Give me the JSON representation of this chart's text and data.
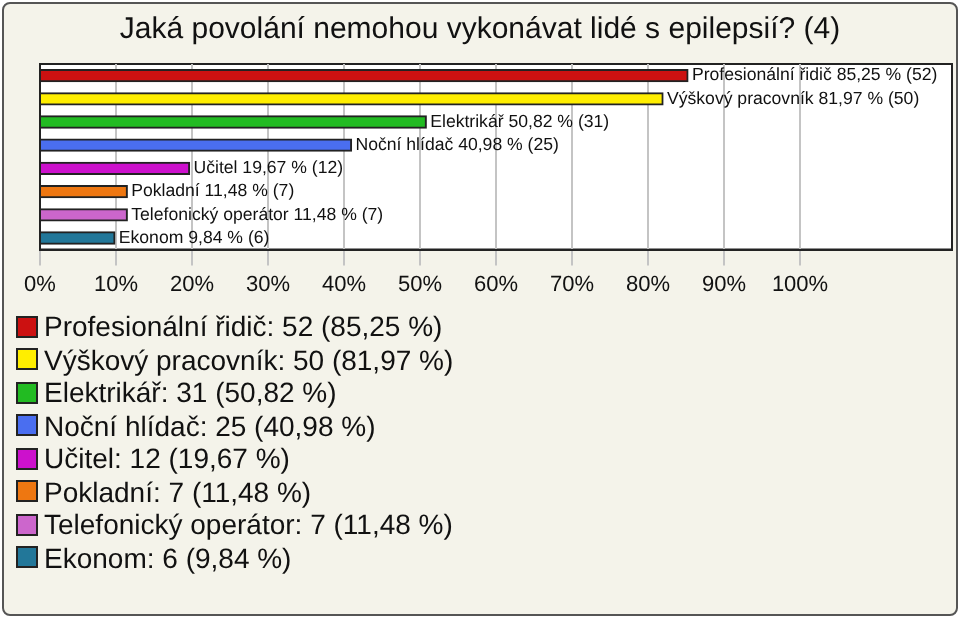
{
  "chart_data": {
    "type": "bar",
    "orientation": "horizontal",
    "title": "Jaká povolání nemohou vykonávat lidé s epilepsií? (4)",
    "categories": [
      null,
      null,
      null,
      null,
      null,
      null,
      null,
      null
    ],
    "series": [
      {
        "name": "Profesionální řidič: 52 (85,25 %)",
        "color": "#cc1111",
        "values": [
          85.25,
          null,
          null,
          null,
          null,
          null,
          null,
          null
        ],
        "value_labels": [
          "Profesionální řidič 85,25 % (52)",
          null,
          null,
          null,
          null,
          null,
          null,
          null
        ]
      },
      {
        "name": "Výškový pracovník: 50 (81,97 %)",
        "color": "#ffee00",
        "values": [
          null,
          81.97,
          null,
          null,
          null,
          null,
          null,
          null
        ],
        "value_labels": [
          null,
          "Výškový pracovník 81,97 % (50)",
          null,
          null,
          null,
          null,
          null,
          null
        ]
      },
      {
        "name": "Elektrikář: 31 (50,82 %)",
        "color": "#22bb22",
        "values": [
          null,
          null,
          50.82,
          null,
          null,
          null,
          null,
          null
        ],
        "value_labels": [
          null,
          null,
          "Elektrikář 50,82 % (31)",
          null,
          null,
          null,
          null,
          null
        ]
      },
      {
        "name": "Noční hlídač: 25 (40,98 %)",
        "color": "#4a6ef0",
        "values": [
          null,
          null,
          null,
          40.98,
          null,
          null,
          null,
          null
        ],
        "value_labels": [
          null,
          null,
          null,
          "Noční hlídač 40,98 % (25)",
          null,
          null,
          null,
          null
        ]
      },
      {
        "name": "Učitel: 12 (19,67 %)",
        "color": "#cc11cc",
        "values": [
          null,
          null,
          null,
          null,
          19.67,
          null,
          null,
          null
        ],
        "value_labels": [
          null,
          null,
          null,
          null,
          "Učitel 19,67 % (12)",
          null,
          null,
          null
        ]
      },
      {
        "name": "Pokladní: 7 (11,48 %)",
        "color": "#ee7711",
        "values": [
          null,
          null,
          null,
          null,
          null,
          11.48,
          null,
          null
        ],
        "value_labels": [
          null,
          null,
          null,
          null,
          null,
          "Pokladní 11,48 % (7)",
          null,
          null
        ]
      },
      {
        "name": "Telefonický operátor: 7 (11,48 %)",
        "color": "#cc66cc",
        "values": [
          null,
          null,
          null,
          null,
          null,
          null,
          11.48,
          null
        ],
        "value_labels": [
          null,
          null,
          null,
          null,
          null,
          null,
          "Telefonický operátor 11,48 % (7)",
          null
        ]
      },
      {
        "name": "Ekonom: 6 (9,84 %)",
        "color": "#227799",
        "values": [
          null,
          null,
          null,
          null,
          null,
          null,
          null,
          9.84
        ],
        "value_labels": [
          null,
          null,
          null,
          null,
          null,
          null,
          null,
          "Ekonom 9,84 % (6)"
        ]
      }
    ],
    "xlim": [
      0,
      120
    ],
    "xticks": [
      {
        "value": 0,
        "label": "0%"
      },
      {
        "value": 10,
        "label": "10%"
      },
      {
        "value": 20,
        "label": "20%"
      },
      {
        "value": 30,
        "label": "30%"
      },
      {
        "value": 40,
        "label": "40%"
      },
      {
        "value": 50,
        "label": "50%"
      },
      {
        "value": 60,
        "label": "60%"
      },
      {
        "value": 70,
        "label": "70%"
      },
      {
        "value": 80,
        "label": "80%"
      },
      {
        "value": 90,
        "label": "90%"
      },
      {
        "value": 100,
        "label": "100%"
      }
    ],
    "grid": "x",
    "legend": "bottom",
    "tick_labels": "x"
  }
}
